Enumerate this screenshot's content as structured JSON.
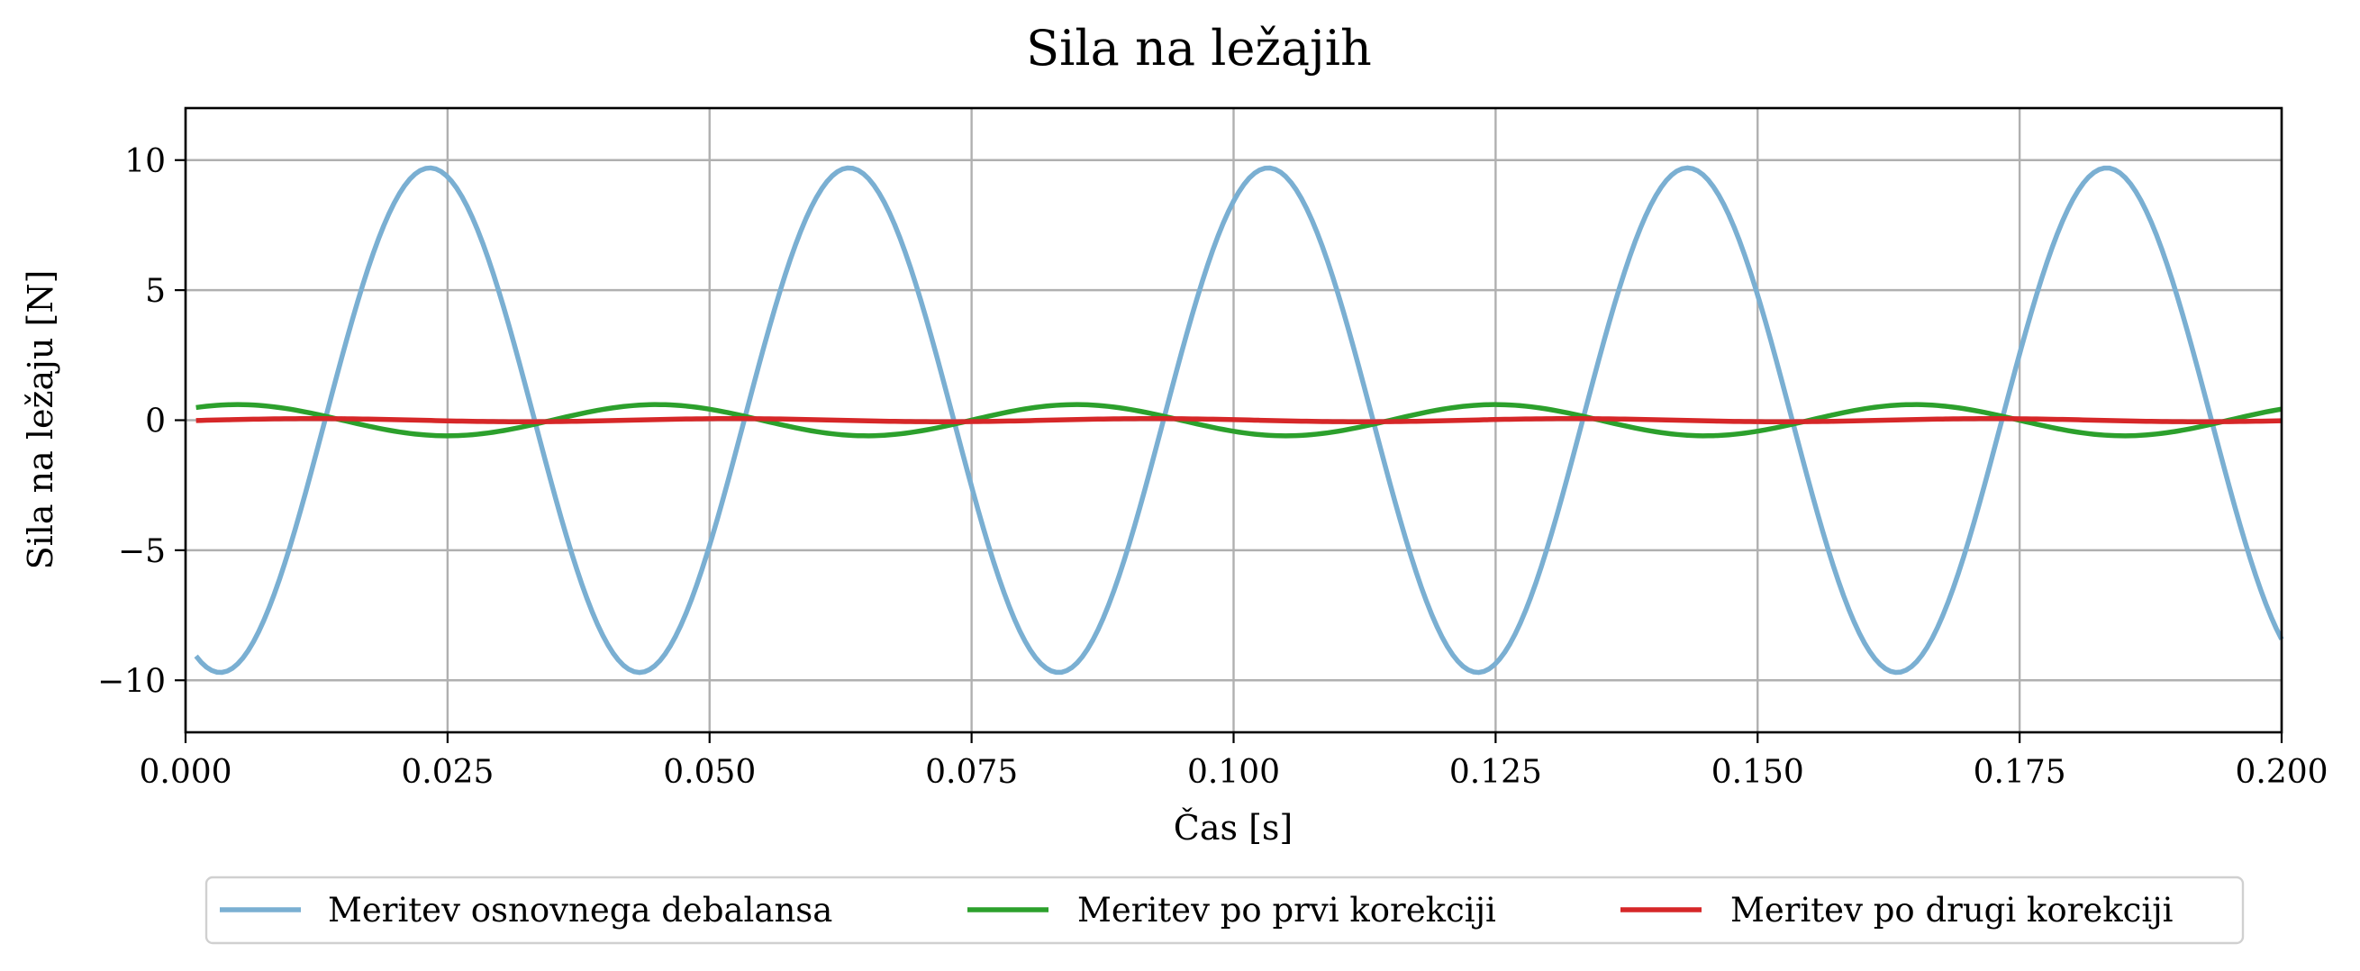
{
  "chart_data": {
    "type": "line",
    "title": "Sila na ležajih",
    "xlabel": "Čas [s]",
    "ylabel": "Sila na ležaju [N]",
    "xlim": [
      0.0,
      0.2
    ],
    "ylim": [
      -12,
      12
    ],
    "xticks": [
      0.0,
      0.025,
      0.05,
      0.075,
      0.1,
      0.125,
      0.15,
      0.175,
      0.2
    ],
    "xtick_labels": [
      "0.000",
      "0.025",
      "0.050",
      "0.075",
      "0.100",
      "0.125",
      "0.150",
      "0.175",
      "0.200"
    ],
    "yticks": [
      -10,
      -5,
      0,
      5,
      10
    ],
    "ytick_labels": [
      "−10",
      "−5",
      "0",
      "5",
      "10"
    ],
    "grid": true,
    "legend_position": "below-center",
    "series": [
      {
        "name": "Meritev osnovnega debalansa",
        "color": "#7aafd2",
        "amplitude": 9.7,
        "frequency_hz": 25,
        "phase_rad": -2.09,
        "x_start": 0.001,
        "x_end": 0.2
      },
      {
        "name": "Meritev po prvi korekciji",
        "color": "#2ca02c",
        "amplitude": 0.6,
        "frequency_hz": 25,
        "phase_rad": 0.79,
        "x_start": 0.001,
        "x_end": 0.2
      },
      {
        "name": "Meritev po drugi korekciji",
        "color": "#d62728",
        "amplitude": 0.06,
        "frequency_hz": 25,
        "phase_rad": -0.35,
        "x_start": 0.001,
        "x_end": 0.2
      }
    ]
  }
}
